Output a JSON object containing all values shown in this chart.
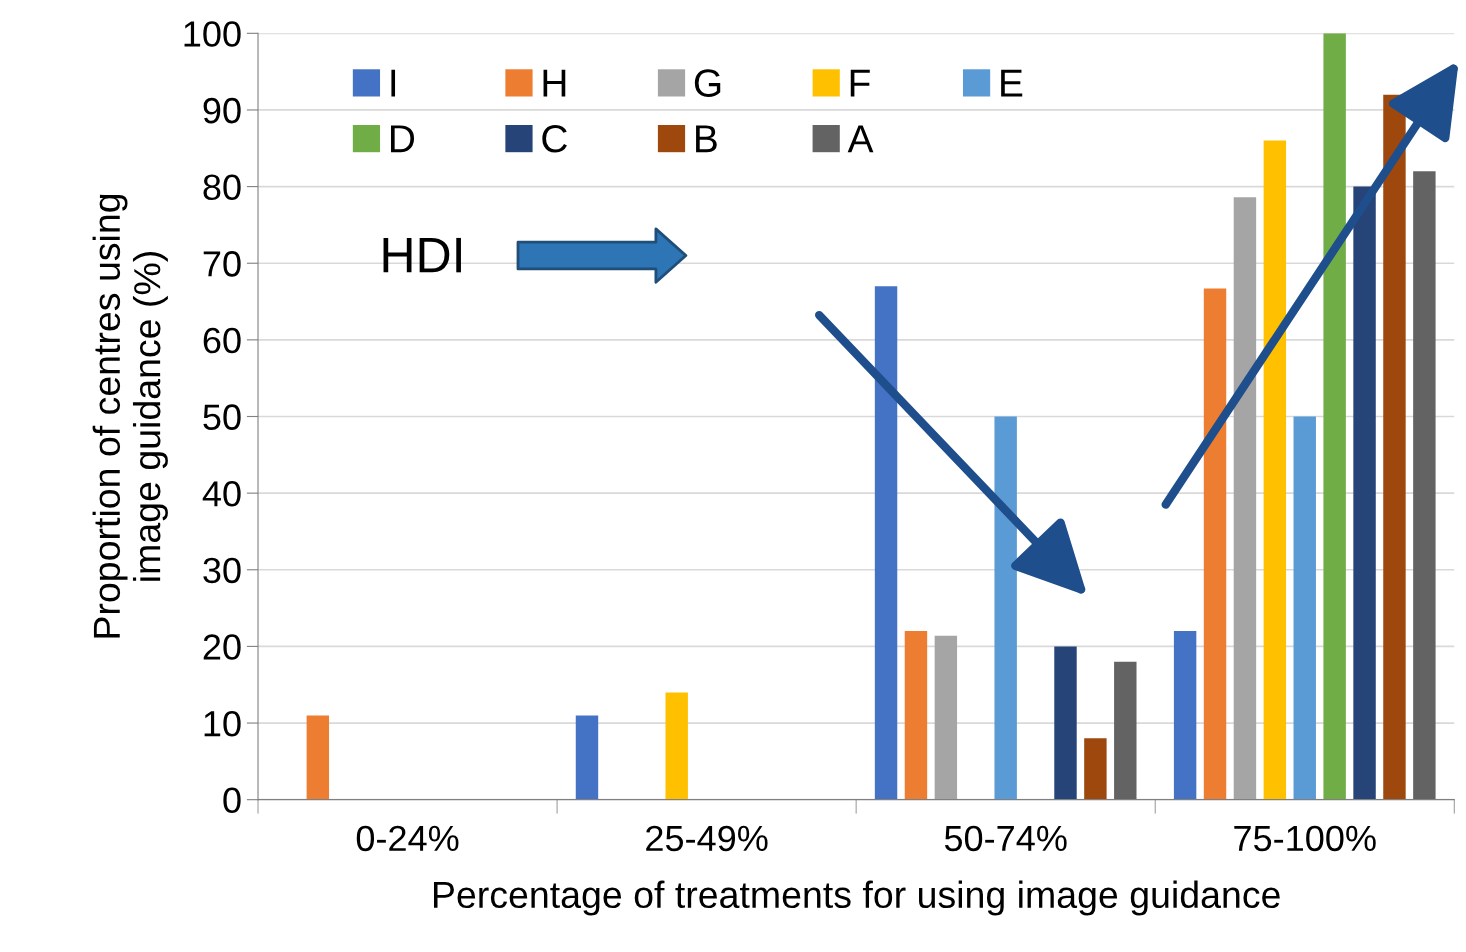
{
  "chart_data": {
    "type": "bar",
    "xlabel": "Percentage of treatments for using image guidance",
    "ylabel": "Proportion of centres using\nimage guidance (%)",
    "categories": [
      "0-24%",
      "25-49%",
      "50-74%",
      "75-100%"
    ],
    "series": [
      {
        "name": "I",
        "color": "#4472c4",
        "values": [
          0,
          11,
          67,
          22
        ]
      },
      {
        "name": "H",
        "color": "#ed7d31",
        "values": [
          11,
          0,
          22,
          66.7
        ]
      },
      {
        "name": "G",
        "color": "#a5a5a5",
        "values": [
          0,
          0,
          21.4,
          78.6
        ]
      },
      {
        "name": "F",
        "color": "#ffc000",
        "values": [
          0,
          14,
          0,
          86
        ]
      },
      {
        "name": "E",
        "color": "#5b9bd5",
        "values": [
          0,
          0,
          50,
          50
        ]
      },
      {
        "name": "D",
        "color": "#70ad47",
        "values": [
          0,
          0,
          0,
          100
        ]
      },
      {
        "name": "C",
        "color": "#264478",
        "values": [
          0,
          0,
          20,
          80
        ]
      },
      {
        "name": "B",
        "color": "#9e480e",
        "values": [
          0,
          0,
          8,
          92
        ]
      },
      {
        "name": "A",
        "color": "#636363",
        "values": [
          0,
          0,
          18,
          82
        ]
      }
    ],
    "ylim": [
      0,
      100
    ],
    "yticks": [
      0,
      10,
      20,
      30,
      40,
      50,
      60,
      70,
      80,
      90,
      100
    ],
    "grid": "y",
    "legend": "top left",
    "annotations": [
      "HDI"
    ]
  }
}
